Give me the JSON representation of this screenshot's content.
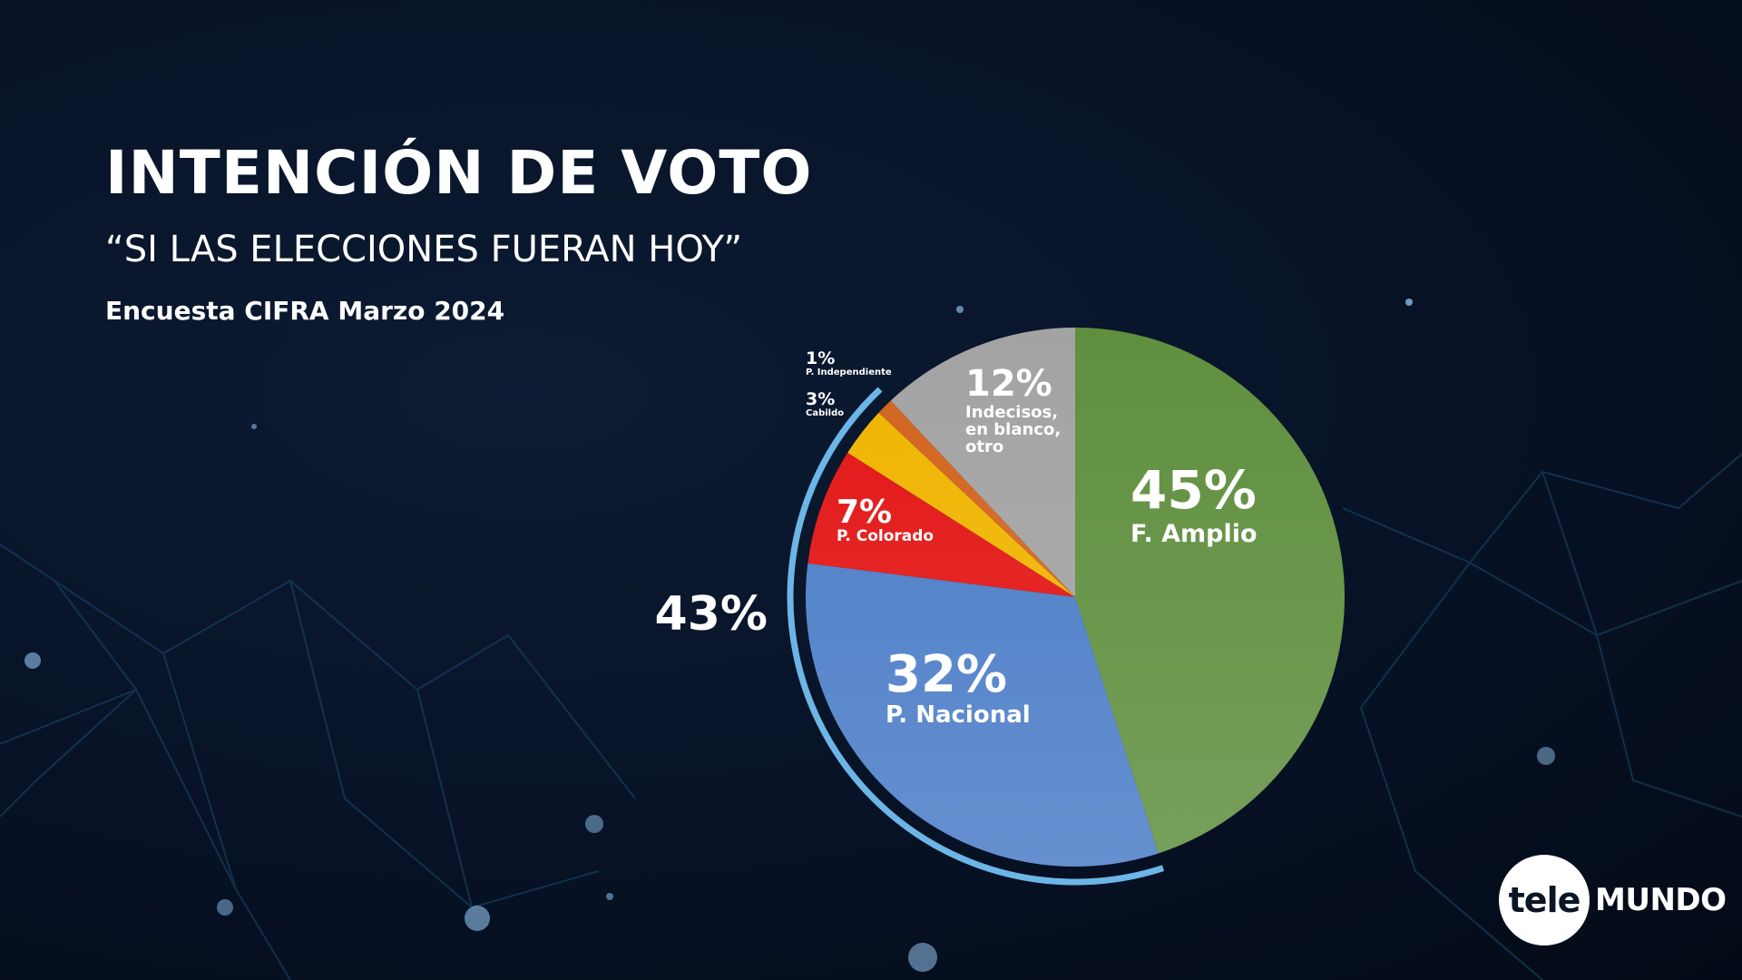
{
  "header": {
    "title": "INTENCIÓN DE VOTO",
    "subtitle": "“SI LAS ELECCIONES FUERAN HOY”",
    "source": "Encuesta CIFRA Marzo 2024"
  },
  "chart_data": {
    "type": "pie",
    "title": "INTENCIÓN DE VOTO",
    "slices": [
      {
        "label": "F. Amplio",
        "value": 45,
        "display": "45%",
        "color": "#5f8f3e"
      },
      {
        "label": "P. Nacional",
        "value": 32,
        "display": "32%",
        "color": "#4a7cc7"
      },
      {
        "label": "P. Colorado",
        "value": 7,
        "display": "7%",
        "color": "#e31414"
      },
      {
        "label": "Cabildo",
        "value": 3,
        "display": "3%",
        "color": "#f0b400"
      },
      {
        "label": "P. Independiente",
        "value": 1,
        "display": "1%",
        "color": "#d2641e"
      },
      {
        "label": "Indecisos, en blanco, otro",
        "value": 12,
        "display": "12%",
        "color": "#a3a3a3"
      }
    ],
    "annotation": {
      "label": "43%",
      "value": 43,
      "covers": [
        "P. Nacional",
        "P. Colorado",
        "Cabildo",
        "P. Independiente"
      ],
      "color": "#6bb6e6"
    }
  },
  "logo": {
    "part1": "tele",
    "part2": "MUNDO"
  }
}
